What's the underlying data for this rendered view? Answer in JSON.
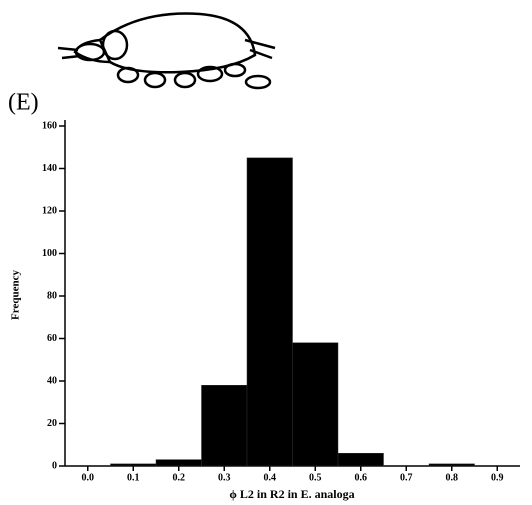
{
  "chart_data": {
    "type": "histogram",
    "title": "(E)",
    "xlabel": "ϕ L2 in R2 in E. analoga",
    "ylabel": "Frequency",
    "bins": [
      0.05,
      0.15,
      0.25,
      0.35,
      0.45,
      0.55,
      0.65,
      0.75,
      0.85
    ],
    "counts": [
      1,
      3,
      38,
      145,
      58,
      6,
      0,
      1
    ],
    "color": "#000000",
    "xlim": [
      -0.05,
      0.95
    ],
    "xticks": [
      {
        "value": 0,
        "label": "0.0"
      },
      0.1,
      0.2,
      0.3,
      0.4,
      0.5,
      0.6,
      0.7,
      0.8,
      0.9
    ],
    "ylim": [
      0,
      160
    ],
    "yticks": [
      0,
      20,
      40,
      60,
      80,
      100,
      120,
      140,
      160
    ]
  }
}
